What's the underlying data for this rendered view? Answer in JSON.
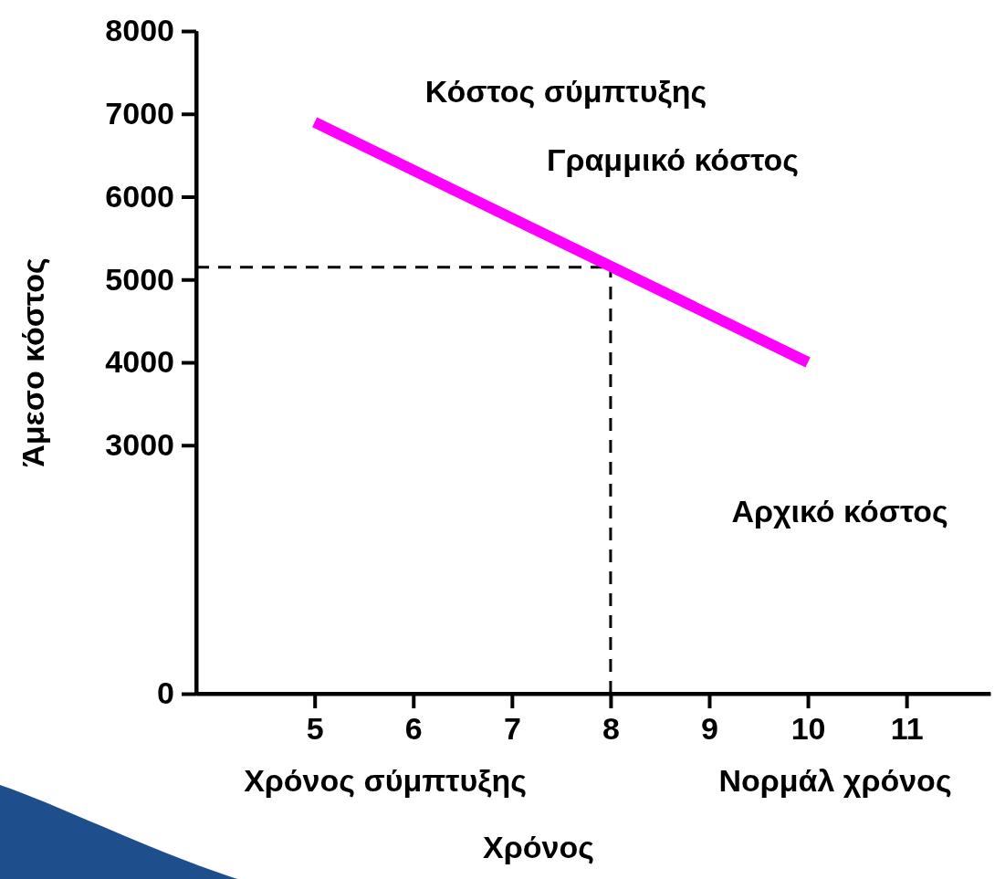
{
  "chart_data": {
    "type": "line",
    "xlabel": "Χρόνος",
    "ylabel": "Άμεσο  κόστος",
    "x": [
      5,
      10
    ],
    "series": [
      {
        "color": "#ff00ff",
        "values": [
          6900,
          4000
        ]
      }
    ],
    "xlim": [
      3.8,
      11.85
    ],
    "xticks": [
      5,
      6,
      7,
      8,
      9,
      10,
      11
    ],
    "ylim": [
      0,
      8000
    ],
    "yticks": [
      0,
      3000,
      4000,
      5000,
      6000,
      7000,
      8000
    ],
    "ref_lines": [
      {
        "axis": "y",
        "value": 5150,
        "color": "#000000",
        "line_style": "dashed"
      },
      {
        "axis": "x",
        "value": 8,
        "color": "#000000",
        "line_style": "dashed"
      }
    ],
    "annotations": [
      "Κόστος σύμπτυξης",
      "Γραμμικό κόστος",
      "Αρχικό κόστος",
      "Χρόνος σύμπτυξης",
      "Νορμάλ χρόνος"
    ],
    "marker": "none",
    "line_style": "solid"
  }
}
